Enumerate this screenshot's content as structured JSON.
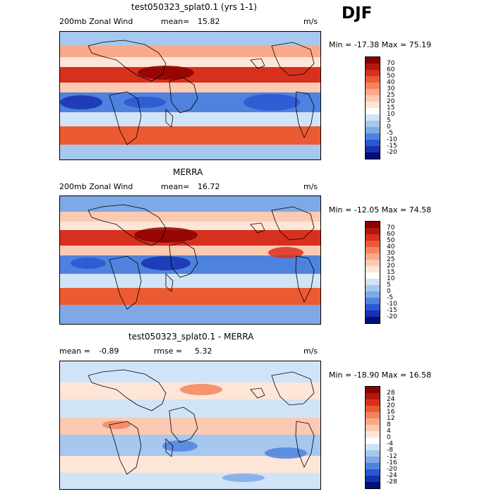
{
  "header": {
    "season": "DJF"
  },
  "panels": [
    {
      "title": "test050323_splat0.1 (yrs 1-1)",
      "left_label": "200mb Zonal Wind",
      "stat_label": "mean=",
      "stat_value": "15.82",
      "stat2_label": "",
      "stat2_value": "",
      "units": "m/s",
      "minmax": "Min = -17.38 Max =  75.19",
      "colorbar": {
        "levels": [
          "70",
          "60",
          "50",
          "40",
          "30",
          "25",
          "20",
          "15",
          "10",
          "5",
          "0",
          "-5",
          "-10",
          "-15",
          "-20"
        ],
        "colors": [
          "#8b0000",
          "#b2180e",
          "#d7301f",
          "#ec5a34",
          "#f4845e",
          "#f9a98a",
          "#fcc9b2",
          "#fde6d8",
          "#ffffff",
          "#d1e3f6",
          "#a6c7ee",
          "#7ea9e6",
          "#4f82de",
          "#2b57d2",
          "#1731b1",
          "#00107a"
        ]
      }
    },
    {
      "title": "MERRA",
      "left_label": "200mb Zonal Wind",
      "stat_label": "mean=",
      "stat_value": "16.72",
      "stat2_label": "",
      "stat2_value": "",
      "units": "m/s",
      "minmax": "Min = -12.05 Max =  74.58",
      "colorbar": {
        "levels": [
          "70",
          "60",
          "50",
          "40",
          "30",
          "25",
          "20",
          "15",
          "10",
          "5",
          "0",
          "-5",
          "-10",
          "-15",
          "-20"
        ],
        "colors": [
          "#8b0000",
          "#b2180e",
          "#d7301f",
          "#ec5a34",
          "#f4845e",
          "#f9a98a",
          "#fcc9b2",
          "#fde6d8",
          "#ffffff",
          "#d1e3f6",
          "#a6c7ee",
          "#7ea9e6",
          "#4f82de",
          "#2b57d2",
          "#1731b1",
          "#00107a"
        ]
      }
    },
    {
      "title": "test050323_splat0.1 - MERRA",
      "left_label": "mean =",
      "stat_label": "",
      "stat_value": "-0.89",
      "stat2_label": "rmse =",
      "stat2_value": "5.32",
      "units": "m/s",
      "minmax": "Min = -18.90 Max =  16.58",
      "colorbar": {
        "levels": [
          "28",
          "24",
          "20",
          "16",
          "12",
          "8",
          "4",
          "0",
          "-4",
          "-8",
          "-12",
          "-16",
          "-20",
          "-24",
          "-28"
        ],
        "colors": [
          "#8b0000",
          "#b2180e",
          "#d7301f",
          "#ec5a34",
          "#f4845e",
          "#f9a98a",
          "#fcc9b2",
          "#fde6d8",
          "#ffffff",
          "#d1e3f6",
          "#a6c7ee",
          "#7ea9e6",
          "#4f82de",
          "#2b57d2",
          "#1731b1",
          "#00107a"
        ]
      }
    }
  ]
}
